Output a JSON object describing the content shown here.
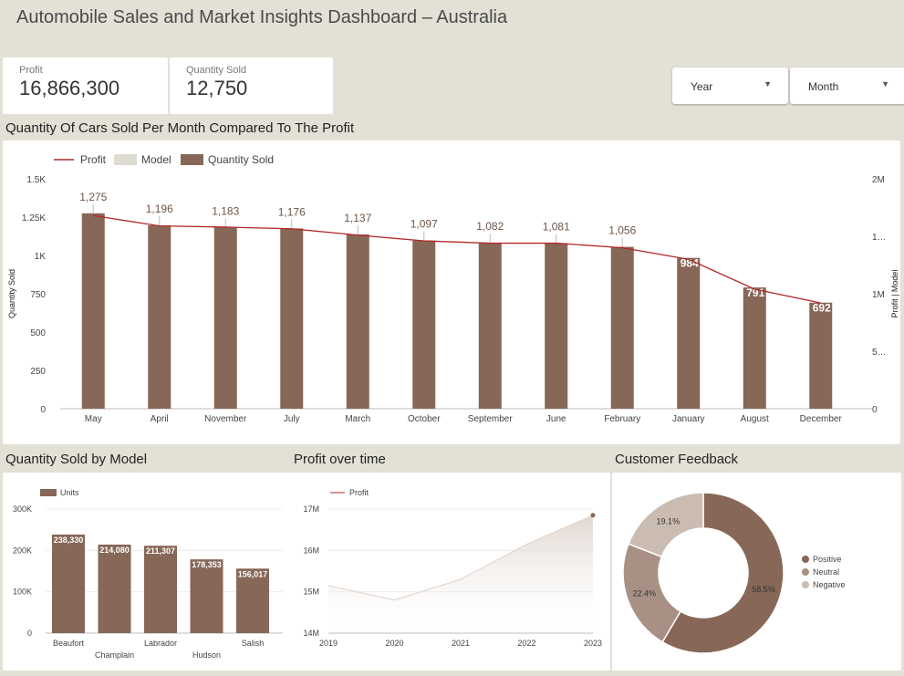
{
  "header": {
    "title": "Automobile Sales and Market Insights Dashboard – Australia"
  },
  "kpis": [
    {
      "label": "Profit",
      "value": "16,866,300"
    },
    {
      "label": "Quantity Sold",
      "value": "12,750"
    }
  ],
  "filters": [
    {
      "label": "Year"
    },
    {
      "label": "Month"
    }
  ],
  "colors": {
    "bar": "#876757",
    "line": "#b02a2a",
    "model": "#dedcd2",
    "positive": "#876757",
    "neutral": "#a89184",
    "negative": "#cbbcb1"
  },
  "sections": {
    "main": "Quantity Of Cars Sold Per Month Compared To The Profit",
    "model": "Quantity Sold by Model",
    "profit": "Profit over time",
    "feedback": "Customer Feedback"
  },
  "chart_data": [
    {
      "type": "bar",
      "legend": [
        "Profit",
        "Model",
        "Quantity Sold"
      ],
      "categories": [
        "May",
        "April",
        "November",
        "July",
        "March",
        "October",
        "September",
        "June",
        "February",
        "January",
        "August",
        "December"
      ],
      "series": [
        {
          "name": "Quantity Sold",
          "values": [
            1275,
            1196,
            1183,
            1176,
            1137,
            1097,
            1082,
            1081,
            1056,
            984,
            791,
            692
          ],
          "labels": [
            "1,275",
            "1,196",
            "1,183",
            "1,176",
            "1,137",
            "1,097",
            "1,082",
            "1,081",
            "1,056",
            "984",
            "791",
            "692"
          ]
        },
        {
          "name": "Profit",
          "values": [
            1680000,
            1590000,
            1580000,
            1565000,
            1510000,
            1460000,
            1440000,
            1440000,
            1400000,
            1300000,
            1040000,
            920000
          ]
        }
      ],
      "ylabel": "Quantity Sold",
      "y2label": "Profit | Model",
      "yticks": [
        "0",
        "250",
        "500",
        "750",
        "1K",
        "1.25K",
        "1.5K"
      ],
      "ylim": [
        0,
        1500
      ],
      "y2ticks": [
        "0",
        "5…",
        "1M",
        "1…",
        "2M"
      ],
      "y2lim": [
        0,
        2000000
      ]
    },
    {
      "type": "bar",
      "legend": [
        "Units"
      ],
      "categories": [
        "Beaufort",
        "Champlain",
        "Labrador",
        "Hudson",
        "Salish"
      ],
      "values": [
        238330,
        214080,
        211307,
        178353,
        156017
      ],
      "labels": [
        "238,330",
        "214,080",
        "211,307",
        "178,353",
        "156,017"
      ],
      "yticks": [
        "0",
        "100K",
        "200K",
        "300K"
      ],
      "ylim": [
        0,
        300000
      ]
    },
    {
      "type": "area",
      "legend": [
        "Profit"
      ],
      "x": [
        "2019",
        "2020",
        "2021",
        "2022",
        "2023"
      ],
      "values": [
        15150000,
        14800000,
        15300000,
        16150000,
        16850000
      ],
      "yticks": [
        "14M",
        "15M",
        "16M",
        "17M"
      ],
      "ylim": [
        14000000,
        17000000
      ]
    },
    {
      "type": "pie",
      "legend": [
        "Positive",
        "Neutral",
        "Negative"
      ],
      "values": [
        58.5,
        22.4,
        19.1
      ],
      "labels": [
        "58.5%",
        "22.4%",
        "19.1%"
      ]
    }
  ]
}
